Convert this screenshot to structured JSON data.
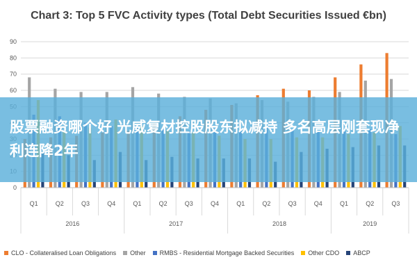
{
  "banner": {
    "headline": "股票融资哪个好 光威复材控股股东拟减持 多名高层刚套现净利连降2年"
  },
  "chart_data": {
    "type": "bar",
    "title": "Chart 3: Top 5 FVC Activity types (Total Debt Securities Issued €bn)",
    "xlabel": "",
    "ylabel": "",
    "ylim": [
      0,
      90
    ],
    "yticks": [
      0,
      10,
      20,
      30,
      40,
      50,
      60,
      70,
      80,
      90
    ],
    "grid": true,
    "legend_position": "bottom",
    "categories": [
      "Q1",
      "Q2",
      "Q3",
      "Q4",
      "Q1",
      "Q2",
      "Q3",
      "Q4",
      "Q1",
      "Q2",
      "Q3",
      "Q4",
      "Q1",
      "Q2",
      "Q3"
    ],
    "groups": [
      {
        "label": "2016",
        "span": 4
      },
      {
        "label": "2017",
        "span": 4
      },
      {
        "label": "2018",
        "span": 4
      },
      {
        "label": "2019",
        "span": 3
      }
    ],
    "series": [
      {
        "name": "CLO - Collateralised Loan Obligations",
        "color": "#ED7D31",
        "values": [
          30,
          31,
          32,
          34,
          35,
          40,
          44,
          48,
          51,
          57,
          61,
          60,
          68,
          76,
          83
        ]
      },
      {
        "name": "Other",
        "color": "#A5A5A5",
        "values": [
          68,
          61,
          59,
          59,
          62,
          58,
          56,
          55,
          52,
          54,
          53,
          56,
          59,
          66,
          67
        ]
      },
      {
        "name": "RMBS - Residential Mortgage Backed Securities",
        "color": "#4472C4",
        "values": [
          45,
          44,
          40,
          38,
          37,
          36,
          35,
          36,
          35,
          37,
          36,
          35,
          35,
          36,
          33
        ]
      },
      {
        "name": "Other CDO",
        "color": "#FFC000",
        "values": [
          54,
          35,
          37,
          42,
          38,
          35,
          34,
          32,
          30,
          30,
          31,
          31,
          33,
          34,
          38
        ]
      },
      {
        "name": "ABCP",
        "color": "#264478",
        "values": [
          22,
          20,
          17,
          22,
          17,
          19,
          18,
          18,
          18,
          16,
          22,
          24,
          25,
          26,
          26
        ]
      }
    ]
  }
}
